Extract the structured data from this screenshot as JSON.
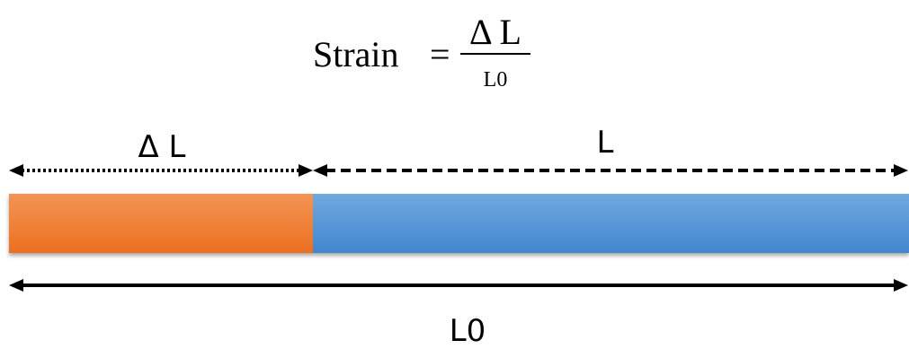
{
  "formula": {
    "lhs": "Strain",
    "equals": "=",
    "numerator": "Δ L",
    "denominator": "L0"
  },
  "labels": {
    "delta_l": "Δ L",
    "l": "L",
    "l0": "L0"
  },
  "colors": {
    "delta_segment_top": "#F39454",
    "delta_segment_bottom": "#EC6F1F",
    "length_segment_top": "#6FA8DF",
    "length_segment_bottom": "#4286CF",
    "stroke": "#000000"
  }
}
